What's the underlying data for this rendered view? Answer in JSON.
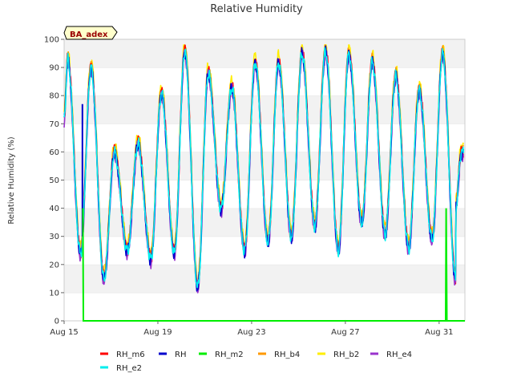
{
  "chart_data": {
    "type": "line",
    "title": "Relative Humidity",
    "ylabel": "Relative Humidity (%)",
    "xlabel": "",
    "site_label": "BA_adex",
    "ylim": [
      0,
      100
    ],
    "xlim": [
      0,
      17.1
    ],
    "yticks": [
      0,
      10,
      20,
      30,
      40,
      50,
      60,
      70,
      80,
      90,
      100
    ],
    "xticks": [
      {
        "day": 0,
        "label": "Aug 15"
      },
      {
        "day": 4,
        "label": "Aug 19"
      },
      {
        "day": 8,
        "label": "Aug 23"
      },
      {
        "day": 12,
        "label": "Aug 27"
      },
      {
        "day": 16,
        "label": "Aug 31"
      }
    ],
    "grid": "horizontal bands",
    "legend_position": "bottom",
    "series_style": [
      {
        "name": "RH_m6",
        "color": "#ff0000"
      },
      {
        "name": "RH",
        "color": "#0000cc"
      },
      {
        "name": "RH_m2",
        "color": "#00ee00"
      },
      {
        "name": "RH_b4",
        "color": "#ff9900"
      },
      {
        "name": "RH_b2",
        "color": "#ffee00"
      },
      {
        "name": "RH_e4",
        "color": "#9933cc"
      },
      {
        "name": "RH_e2",
        "color": "#00eeee"
      }
    ],
    "daily_extremes": [
      {
        "day": 0.15,
        "max": 93,
        "min": 24
      },
      {
        "day": 1.15,
        "max": 90,
        "min": 15
      },
      {
        "day": 2.15,
        "max": 60,
        "min": 25
      },
      {
        "day": 3.15,
        "max": 63,
        "min": 22
      },
      {
        "day": 4.15,
        "max": 81,
        "min": 24
      },
      {
        "day": 5.15,
        "max": 96,
        "min": 12
      },
      {
        "day": 6.15,
        "max": 88,
        "min": 40
      },
      {
        "day": 7.15,
        "max": 83,
        "min": 25
      },
      {
        "day": 8.15,
        "max": 92,
        "min": 28
      },
      {
        "day": 9.15,
        "max": 92,
        "min": 30
      },
      {
        "day": 10.15,
        "max": 95,
        "min": 34
      },
      {
        "day": 11.15,
        "max": 96,
        "min": 25
      },
      {
        "day": 12.15,
        "max": 95,
        "min": 35
      },
      {
        "day": 13.15,
        "max": 92,
        "min": 31
      },
      {
        "day": 14.15,
        "max": 87,
        "min": 26
      },
      {
        "day": 15.15,
        "max": 82,
        "min": 29
      },
      {
        "day": 16.15,
        "max": 95,
        "min": 15
      },
      {
        "day": 16.95,
        "max": 60,
        "min": 40
      }
    ],
    "rh_m2_profile": {
      "x": [
        0,
        0.78,
        0.8,
        0.82,
        16.28,
        16.3,
        16.33,
        17.1
      ],
      "y": [
        null,
        null,
        40,
        0,
        0,
        40,
        0,
        0
      ]
    },
    "rh_spike": {
      "day": 0.78,
      "max": 77
    }
  }
}
